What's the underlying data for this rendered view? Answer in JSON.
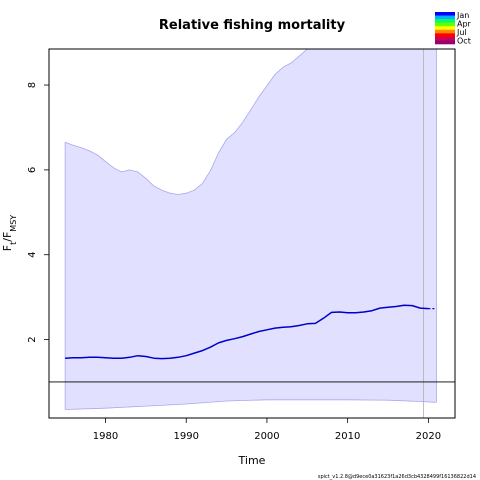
{
  "chart_data": {
    "type": "line",
    "title": "Relative fishing mortality",
    "xlabel": "Time",
    "ylabel": {
      "base": "F",
      "sub1": "t",
      "sep": "/F",
      "sub2": "MSY"
    },
    "xlim": [
      1973,
      2023.3
    ],
    "ylim": [
      0.15,
      8.85
    ],
    "xticks": [
      1980,
      1990,
      2000,
      2010,
      2020
    ],
    "yticks": [
      2,
      4,
      6,
      8
    ],
    "reference_line": 1,
    "vertical_line": 2019.4,
    "series": [
      {
        "role": "estimate",
        "x": [
          1975,
          1976,
          1977,
          1978,
          1979,
          1980,
          1981,
          1982,
          1983,
          1984,
          1985,
          1986,
          1987,
          1988,
          1989,
          1990,
          1991,
          1992,
          1993,
          1994,
          1995,
          1996,
          1997,
          1998,
          1999,
          2000,
          2001,
          2002,
          2003,
          2004,
          2005,
          2006,
          2007,
          2008,
          2009,
          2010,
          2011,
          2012,
          2013,
          2014,
          2015,
          2016,
          2017,
          2018,
          2019,
          2020
        ],
        "y": [
          1.56,
          1.57,
          1.57,
          1.58,
          1.58,
          1.57,
          1.56,
          1.56,
          1.58,
          1.62,
          1.6,
          1.56,
          1.55,
          1.56,
          1.58,
          1.62,
          1.68,
          1.74,
          1.82,
          1.92,
          1.98,
          2.02,
          2.07,
          2.13,
          2.19,
          2.23,
          2.27,
          2.29,
          2.3,
          2.33,
          2.37,
          2.38,
          2.5,
          2.64,
          2.65,
          2.63,
          2.63,
          2.65,
          2.68,
          2.74,
          2.76,
          2.78,
          2.81,
          2.8,
          2.74,
          2.73
        ]
      },
      {
        "role": "forecast",
        "x": [
          2020,
          2021
        ],
        "y": [
          2.73,
          2.73
        ]
      }
    ],
    "ci_upper": {
      "x": [
        1975,
        1976,
        1977,
        1978,
        1979,
        1980,
        1981,
        1982,
        1983,
        1984,
        1985,
        1986,
        1987,
        1988,
        1989,
        1990,
        1991,
        1992,
        1993,
        1994,
        1995,
        1996,
        1997,
        1998,
        1999,
        2000,
        2001,
        2002,
        2003,
        2004,
        2005,
        2006,
        2007,
        2008,
        2009,
        2010,
        2011,
        2012,
        2013,
        2014,
        2015,
        2016,
        2017,
        2018,
        2019,
        2020,
        2021
      ],
      "y": [
        6.65,
        6.58,
        6.52,
        6.45,
        6.35,
        6.2,
        6.05,
        5.95,
        6.0,
        5.95,
        5.8,
        5.62,
        5.52,
        5.45,
        5.42,
        5.45,
        5.52,
        5.68,
        5.98,
        6.4,
        6.72,
        6.88,
        7.12,
        7.42,
        7.72,
        7.98,
        8.25,
        8.42,
        8.52,
        8.68,
        8.85,
        8.85,
        8.85,
        8.85,
        8.85,
        8.85,
        8.85,
        8.85,
        8.85,
        8.85,
        8.85,
        8.85,
        8.85,
        8.85,
        8.85,
        8.85,
        8.85
      ]
    },
    "ci_lower": {
      "x": [
        1975,
        1980,
        1985,
        1990,
        1995,
        2000,
        2005,
        2010,
        2015,
        2019,
        2021
      ],
      "y": [
        0.35,
        0.38,
        0.43,
        0.48,
        0.55,
        0.58,
        0.58,
        0.58,
        0.57,
        0.54,
        0.52
      ]
    },
    "legend": {
      "placement": "top-right",
      "entries": [
        "Jan",
        "Apr",
        "Jul",
        "Oct"
      ],
      "colors": [
        "#0000ff",
        "#00b0ff",
        "#00ff66",
        "#66ff00",
        "#ffff00",
        "#ff8800",
        "#ff0000",
        "#cc0055",
        "#99006f"
      ]
    },
    "colors": {
      "ci_fill": "#e1e1ff",
      "ci_edge": "#a7a7f0",
      "estimate": "#0000cc",
      "reference": "#000000",
      "vertical": "#b0b0b0"
    }
  },
  "footer": "spict_v1.2.8@d9ece0a31623f1a26d3cb4328499f16136822d14"
}
